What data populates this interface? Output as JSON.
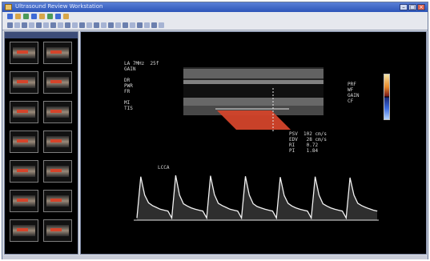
{
  "window": {
    "title": "Ultrasound Review Workstation"
  },
  "toolbar1": {
    "buttons": [
      "file",
      "edit",
      "view",
      "image",
      "measure",
      "report",
      "settings",
      "help"
    ]
  },
  "colors": {
    "accent": "#2d55b8",
    "doppler": "#d4442b",
    "waveform": "#f2f2f2"
  },
  "overlay": {
    "left_info": [
      "LA 7MHz  25f",
      "GAIN",
      "",
      "DR",
      "PWR",
      "FR",
      "",
      "MI",
      "TIS"
    ],
    "top_right": [
      "PRF",
      "WF",
      "GAIN",
      "CF"
    ],
    "measurements": [
      "PSV  102 cm/s",
      "EDV   28 cm/s",
      "RI    0.72",
      "PI    1.84"
    ],
    "label_under_image": "LCCA"
  },
  "chart_data": {
    "type": "line",
    "title": "",
    "xlabel": "",
    "ylabel": "",
    "series": [
      {
        "values": [
          0.05,
          0.95,
          0.55,
          0.38,
          0.32,
          0.28,
          0.24,
          0.22,
          0.2,
          0.05,
          0.98,
          0.55,
          0.36,
          0.31,
          0.27,
          0.24,
          0.22,
          0.2,
          0.05,
          0.97,
          0.56,
          0.37,
          0.32,
          0.28,
          0.24,
          0.22,
          0.2,
          0.05,
          0.96,
          0.55,
          0.36,
          0.3,
          0.27,
          0.24,
          0.22,
          0.2,
          0.05,
          0.94,
          0.54,
          0.37,
          0.31,
          0.27,
          0.24,
          0.22,
          0.2,
          0.05,
          0.95,
          0.55,
          0.36,
          0.31,
          0.27,
          0.24,
          0.22,
          0.2,
          0.05,
          0.93,
          0.55,
          0.37,
          0.32,
          0.28,
          0.25,
          0.22,
          0.2
        ]
      }
    ],
    "ylim": [
      0,
      1
    ]
  }
}
